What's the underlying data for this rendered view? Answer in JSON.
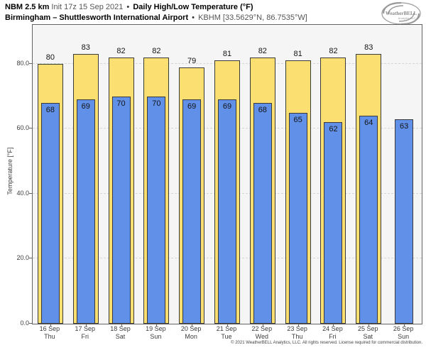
{
  "header": {
    "model": "NBM 2.5 km",
    "init": "Init 17z 15 Sep 2021",
    "separator": "•",
    "product": "Daily High/Low Temperature (°F)",
    "location": "Birmingham – Shuttlesworth International Airport",
    "station": "KBHM [33.5629°N, 86.7535°W]"
  },
  "logo": {
    "name": "WeatherBELL",
    "sub": "Analytics LLC"
  },
  "footer": {
    "copyright": "© 2021 WeatherBELL Analytics, LLC. All rights reserved. License required for commercial distribution."
  },
  "chart_data": {
    "type": "bar",
    "title": "NBM 2.5 km Daily High/Low Temperature (°F) — Birmingham, KBHM",
    "categories": [
      "16 Sep",
      "17 Sep",
      "18 Sep",
      "19 Sep",
      "20 Sep",
      "21 Sep",
      "22 Sep",
      "23 Sep",
      "24 Sep",
      "25 Sep",
      "26 Sep"
    ],
    "day_labels": [
      "Thu",
      "Fri",
      "Sat",
      "Sun",
      "Mon",
      "Tue",
      "Wed",
      "Thu",
      "Fri",
      "Sat",
      "Sun"
    ],
    "series": [
      {
        "name": "High",
        "color": "#fbdf70",
        "values": [
          80,
          83,
          82,
          82,
          79,
          81,
          82,
          81,
          82,
          83,
          null
        ]
      },
      {
        "name": "Low",
        "color": "#6190e8",
        "values": [
          68,
          69,
          70,
          70,
          69,
          69,
          68,
          65,
          62,
          64,
          63
        ]
      }
    ],
    "xlabel": "",
    "ylabel": "Temperature [°F]",
    "ylim": [
      0,
      92
    ],
    "yticks": [
      0,
      20,
      40,
      60,
      80
    ],
    "ytick_format": "one-decimal",
    "grid": "dashed-horizontal",
    "legend": "none",
    "value_labels": "high-above-bar, low-inside-bar-top"
  }
}
